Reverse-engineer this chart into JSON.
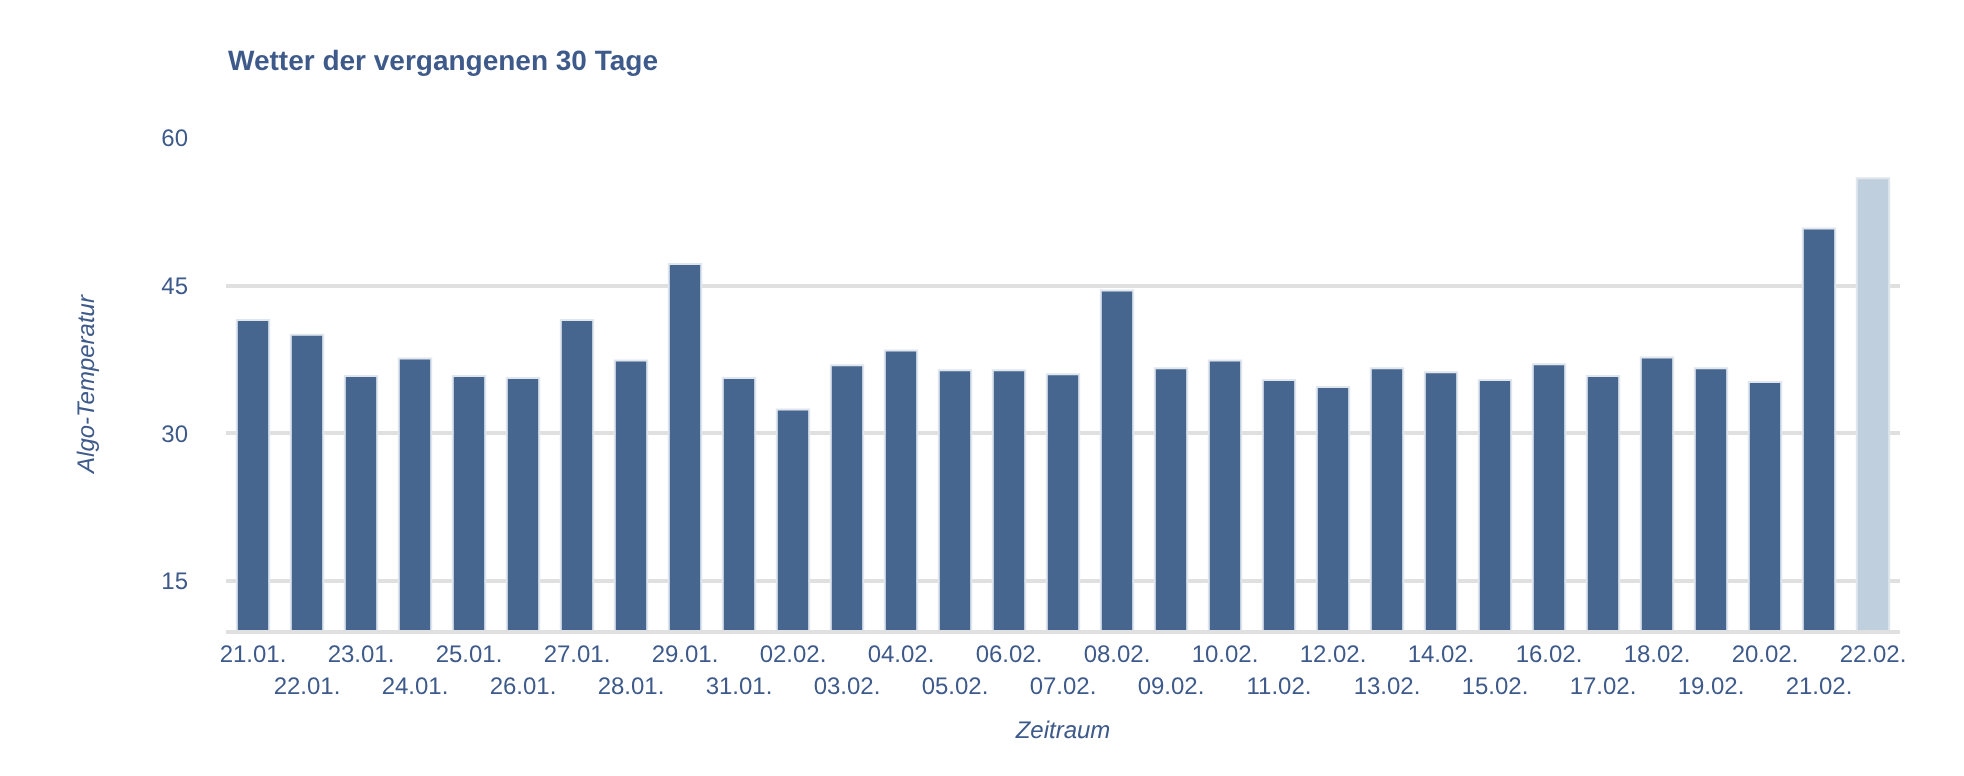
{
  "chart_data": {
    "type": "bar",
    "title": "Wetter der vergangenen 30 Tage",
    "xlabel": "Zeitraum",
    "ylabel": "Algo-Temperatur",
    "categories": [
      "21.01.",
      "22.01.",
      "23.01.",
      "24.01.",
      "25.01.",
      "26.01.",
      "27.01.",
      "28.01.",
      "29.01.",
      "31.01.",
      "02.02.",
      "03.02.",
      "04.02.",
      "05.02.",
      "06.02.",
      "07.02.",
      "08.02.",
      "09.02.",
      "10.02.",
      "11.02.",
      "12.02.",
      "13.02.",
      "14.02.",
      "15.02.",
      "16.02.",
      "17.02.",
      "18.02.",
      "19.02.",
      "20.02.",
      "21.02.",
      "22.02."
    ],
    "values": [
      41.5,
      40.0,
      35.8,
      37.6,
      35.8,
      35.6,
      41.5,
      37.4,
      47.2,
      35.6,
      32.4,
      36.9,
      38.4,
      36.4,
      36.4,
      36.0,
      44.5,
      36.6,
      37.4,
      35.4,
      34.7,
      36.6,
      36.2,
      35.4,
      37.0,
      35.8,
      37.7,
      36.6,
      35.2,
      50.8,
      55.9
    ],
    "colors": [
      "#46668f",
      "#46668f",
      "#46668f",
      "#46668f",
      "#46668f",
      "#46668f",
      "#46668f",
      "#46668f",
      "#46668f",
      "#46668f",
      "#46668f",
      "#46668f",
      "#46668f",
      "#46668f",
      "#46668f",
      "#46668f",
      "#46668f",
      "#46668f",
      "#46668f",
      "#46668f",
      "#46668f",
      "#46668f",
      "#46668f",
      "#46668f",
      "#46668f",
      "#46668f",
      "#46668f",
      "#46668f",
      "#46668f",
      "#46668f",
      "#c0cfdd"
    ],
    "ylim": [
      10,
      60
    ],
    "yticks": [
      15,
      30,
      45,
      60
    ],
    "grid": "y",
    "legend": false
  }
}
